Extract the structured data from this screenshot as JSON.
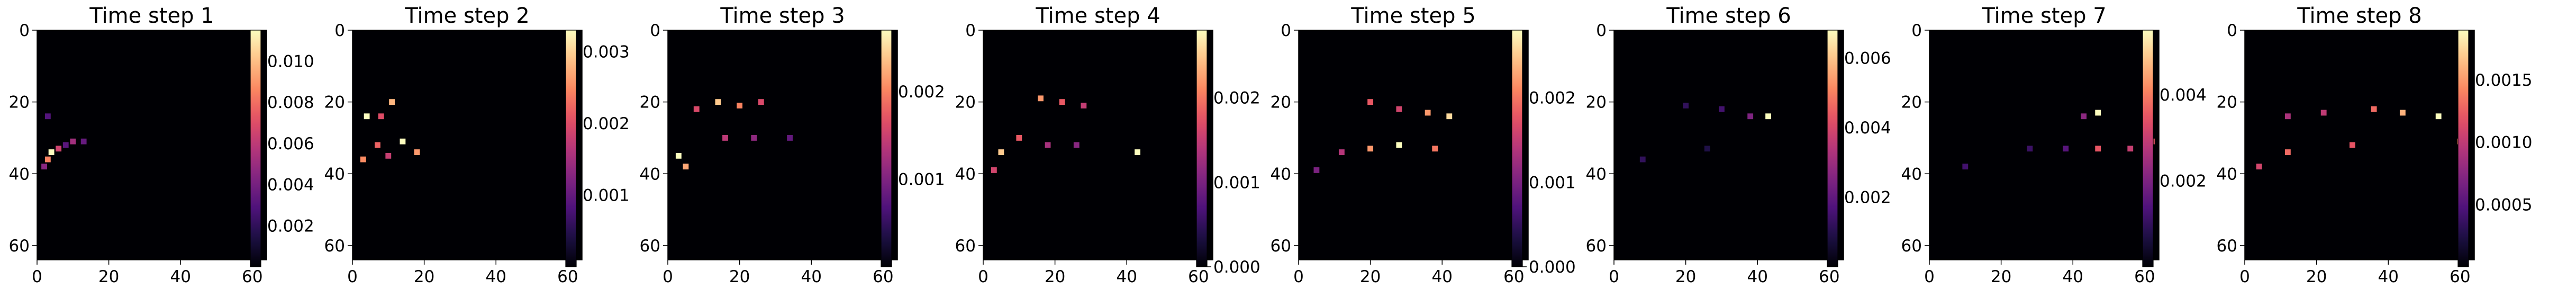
{
  "figure": {
    "background": "#ffffff"
  },
  "colormap": "magma",
  "chart_data": [
    {
      "type": "heatmap",
      "title": "Time step 1",
      "xlim": [
        0,
        64
      ],
      "ylim": [
        0,
        64
      ],
      "x_ticks": [
        0,
        20,
        40,
        60
      ],
      "y_ticks": [
        0,
        20,
        40,
        60
      ],
      "colorbar": {
        "ticks": [
          0.002,
          0.004,
          0.006,
          0.008,
          0.01
        ],
        "labels": [
          "0.002",
          "0.004",
          "0.006",
          "0.008",
          "0.010"
        ],
        "vmin": 0.0,
        "vmax": 0.0115
      },
      "features": [
        {
          "x": 4,
          "y": 34,
          "v": 0.0115
        },
        {
          "x": 3,
          "y": 36,
          "v": 0.0085
        },
        {
          "x": 6,
          "y": 33,
          "v": 0.0065
        },
        {
          "x": 10,
          "y": 31,
          "v": 0.0052
        },
        {
          "x": 2,
          "y": 38,
          "v": 0.0045
        },
        {
          "x": 13,
          "y": 31,
          "v": 0.0035
        },
        {
          "x": 3,
          "y": 24,
          "v": 0.003
        },
        {
          "x": 8,
          "y": 32,
          "v": 0.0032
        }
      ]
    },
    {
      "type": "heatmap",
      "title": "Time step 2",
      "xlim": [
        0,
        64
      ],
      "ylim": [
        0,
        64
      ],
      "x_ticks": [
        0,
        20,
        40,
        60
      ],
      "y_ticks": [
        0,
        20,
        40,
        60
      ],
      "colorbar": {
        "ticks": [
          0.001,
          0.002,
          0.003
        ],
        "labels": [
          "0.001",
          "0.002",
          "0.003"
        ],
        "vmin": 0.0,
        "vmax": 0.0033
      },
      "features": [
        {
          "x": 4,
          "y": 24,
          "v": 0.0033
        },
        {
          "x": 11,
          "y": 20,
          "v": 0.0028
        },
        {
          "x": 14,
          "y": 31,
          "v": 0.0033
        },
        {
          "x": 18,
          "y": 34,
          "v": 0.0026
        },
        {
          "x": 7,
          "y": 32,
          "v": 0.0022
        },
        {
          "x": 3,
          "y": 36,
          "v": 0.0025
        },
        {
          "x": 8,
          "y": 24,
          "v": 0.002
        },
        {
          "x": 10,
          "y": 35,
          "v": 0.0018
        }
      ]
    },
    {
      "type": "heatmap",
      "title": "Time step 3",
      "xlim": [
        0,
        64
      ],
      "ylim": [
        0,
        64
      ],
      "x_ticks": [
        0,
        20,
        40,
        60
      ],
      "y_ticks": [
        0,
        20,
        40,
        60
      ],
      "colorbar": {
        "ticks": [
          0.001,
          0.002
        ],
        "labels": [
          "0.001",
          "0.002"
        ],
        "vmin": 0.0,
        "vmax": 0.0027
      },
      "features": [
        {
          "x": 14,
          "y": 20,
          "v": 0.0024
        },
        {
          "x": 20,
          "y": 21,
          "v": 0.002
        },
        {
          "x": 26,
          "y": 20,
          "v": 0.0016
        },
        {
          "x": 3,
          "y": 35,
          "v": 0.0027
        },
        {
          "x": 5,
          "y": 38,
          "v": 0.0022
        },
        {
          "x": 8,
          "y": 22,
          "v": 0.0016
        },
        {
          "x": 16,
          "y": 30,
          "v": 0.0014
        },
        {
          "x": 24,
          "y": 30,
          "v": 0.0011
        },
        {
          "x": 34,
          "y": 30,
          "v": 0.0008
        }
      ]
    },
    {
      "type": "heatmap",
      "title": "Time step 4",
      "xlim": [
        0,
        64
      ],
      "ylim": [
        0,
        64
      ],
      "x_ticks": [
        0,
        20,
        40,
        60
      ],
      "y_ticks": [
        0,
        20,
        40,
        60
      ],
      "colorbar": {
        "ticks": [
          0.0,
          0.001,
          0.002
        ],
        "labels": [
          "0.000",
          "0.001",
          "0.002"
        ],
        "vmin": 0.0,
        "vmax": 0.0028
      },
      "features": [
        {
          "x": 16,
          "y": 19,
          "v": 0.0022
        },
        {
          "x": 22,
          "y": 20,
          "v": 0.0018
        },
        {
          "x": 28,
          "y": 21,
          "v": 0.0015
        },
        {
          "x": 5,
          "y": 34,
          "v": 0.0025
        },
        {
          "x": 10,
          "y": 30,
          "v": 0.0018
        },
        {
          "x": 18,
          "y": 32,
          "v": 0.0013
        },
        {
          "x": 26,
          "y": 32,
          "v": 0.0011
        },
        {
          "x": 43,
          "y": 34,
          "v": 0.0028
        },
        {
          "x": 3,
          "y": 39,
          "v": 0.0016
        }
      ]
    },
    {
      "type": "heatmap",
      "title": "Time step 5",
      "xlim": [
        0,
        64
      ],
      "ylim": [
        0,
        64
      ],
      "x_ticks": [
        0,
        20,
        40,
        60
      ],
      "y_ticks": [
        0,
        20,
        40,
        60
      ],
      "colorbar": {
        "ticks": [
          0.0,
          0.001,
          0.002
        ],
        "labels": [
          "0.000",
          "0.001",
          "0.002"
        ],
        "vmin": 0.0,
        "vmax": 0.0028
      },
      "features": [
        {
          "x": 20,
          "y": 20,
          "v": 0.0018
        },
        {
          "x": 28,
          "y": 22,
          "v": 0.0016
        },
        {
          "x": 36,
          "y": 23,
          "v": 0.0022
        },
        {
          "x": 42,
          "y": 24,
          "v": 0.0026
        },
        {
          "x": 20,
          "y": 33,
          "v": 0.0022
        },
        {
          "x": 28,
          "y": 32,
          "v": 0.0028
        },
        {
          "x": 38,
          "y": 33,
          "v": 0.002
        },
        {
          "x": 12,
          "y": 34,
          "v": 0.0014
        },
        {
          "x": 5,
          "y": 39,
          "v": 0.001
        }
      ]
    },
    {
      "type": "heatmap",
      "title": "Time step 6",
      "xlim": [
        0,
        64
      ],
      "ylim": [
        0,
        64
      ],
      "x_ticks": [
        0,
        20,
        40,
        60
      ],
      "y_ticks": [
        0,
        20,
        40,
        60
      ],
      "colorbar": {
        "ticks": [
          0.002,
          0.004,
          0.006
        ],
        "labels": [
          "0.002",
          "0.004",
          "0.006"
        ],
        "vmin": 0.0,
        "vmax": 0.0068
      },
      "features": [
        {
          "x": 43,
          "y": 24,
          "v": 0.0068
        },
        {
          "x": 38,
          "y": 24,
          "v": 0.0025
        },
        {
          "x": 30,
          "y": 22,
          "v": 0.0015
        },
        {
          "x": 20,
          "y": 21,
          "v": 0.0012
        },
        {
          "x": 8,
          "y": 36,
          "v": 0.0012
        },
        {
          "x": 26,
          "y": 33,
          "v": 0.0009
        }
      ]
    },
    {
      "type": "heatmap",
      "title": "Time step 7",
      "xlim": [
        0,
        64
      ],
      "ylim": [
        0,
        64
      ],
      "x_ticks": [
        0,
        20,
        40,
        60
      ],
      "y_ticks": [
        0,
        20,
        40,
        60
      ],
      "colorbar": {
        "ticks": [
          0.002,
          0.004
        ],
        "labels": [
          "0.002",
          "0.004"
        ],
        "vmin": 0.0,
        "vmax": 0.0055
      },
      "features": [
        {
          "x": 47,
          "y": 23,
          "v": 0.0055
        },
        {
          "x": 43,
          "y": 24,
          "v": 0.0022
        },
        {
          "x": 47,
          "y": 33,
          "v": 0.0035
        },
        {
          "x": 56,
          "y": 33,
          "v": 0.003
        },
        {
          "x": 62,
          "y": 31,
          "v": 0.0035
        },
        {
          "x": 38,
          "y": 33,
          "v": 0.0015
        },
        {
          "x": 28,
          "y": 33,
          "v": 0.0011
        },
        {
          "x": 10,
          "y": 38,
          "v": 0.0012
        }
      ]
    },
    {
      "type": "heatmap",
      "title": "Time step 8",
      "xlim": [
        0,
        64
      ],
      "ylim": [
        0,
        64
      ],
      "x_ticks": [
        0,
        20,
        40,
        60
      ],
      "y_ticks": [
        0,
        20,
        40,
        60
      ],
      "colorbar": {
        "ticks": [
          0.0005,
          0.001,
          0.0015
        ],
        "labels": [
          "0.0005",
          "0.0010",
          "0.0015"
        ],
        "vmin": 0.0,
        "vmax": 0.0019
      },
      "features": [
        {
          "x": 36,
          "y": 22,
          "v": 0.0013
        },
        {
          "x": 44,
          "y": 23,
          "v": 0.0016
        },
        {
          "x": 54,
          "y": 24,
          "v": 0.0019
        },
        {
          "x": 12,
          "y": 24,
          "v": 0.0009
        },
        {
          "x": 22,
          "y": 23,
          "v": 0.001
        },
        {
          "x": 30,
          "y": 32,
          "v": 0.0012
        },
        {
          "x": 12,
          "y": 34,
          "v": 0.0013
        },
        {
          "x": 60,
          "y": 31,
          "v": 0.0014
        },
        {
          "x": 4,
          "y": 38,
          "v": 0.0011
        }
      ]
    }
  ]
}
